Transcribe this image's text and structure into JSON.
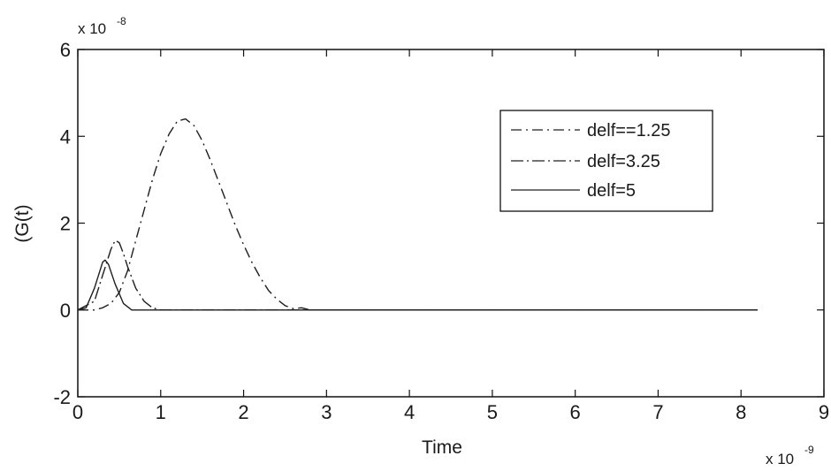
{
  "chart_data": {
    "type": "line",
    "xlabel": "Time",
    "ylabel": "(G(t)",
    "x_multiplier": {
      "base": "x 10",
      "exponent": "-9"
    },
    "y_multiplier": {
      "base": "x 10",
      "exponent": "-8"
    },
    "xlim": [
      0,
      9
    ],
    "ylim": [
      -2,
      6
    ],
    "xticks": [
      0,
      1,
      2,
      3,
      4,
      5,
      6,
      7,
      8,
      9
    ],
    "yticks": [
      -2,
      0,
      2,
      4,
      6
    ],
    "legend_position": "top-right",
    "grid": false,
    "series": [
      {
        "name": "delf==1.25",
        "style": "dash-dot",
        "x": [
          0,
          0.2,
          0.3,
          0.4,
          0.5,
          0.6,
          0.7,
          0.8,
          0.9,
          1.0,
          1.1,
          1.2,
          1.3,
          1.4,
          1.5,
          1.6,
          1.7,
          1.8,
          1.9,
          2.0,
          2.1,
          2.2,
          2.3,
          2.4,
          2.5,
          2.6,
          2.7,
          2.8,
          3.0,
          8.2
        ],
        "y": [
          0,
          0,
          0.05,
          0.15,
          0.4,
          0.9,
          1.6,
          2.3,
          3.0,
          3.6,
          4.05,
          4.35,
          4.4,
          4.25,
          3.9,
          3.45,
          2.95,
          2.45,
          1.95,
          1.5,
          1.1,
          0.75,
          0.45,
          0.25,
          0.1,
          0.03,
          0.05,
          0,
          0,
          0
        ]
      },
      {
        "name": "delf=3.25",
        "style": "dash-dot",
        "x": [
          0,
          0.2,
          0.3,
          0.4,
          0.45,
          0.5,
          0.55,
          0.6,
          0.7,
          0.8,
          0.9,
          1.0,
          8.2
        ],
        "y": [
          0,
          0.2,
          0.8,
          1.4,
          1.6,
          1.55,
          1.3,
          1.0,
          0.5,
          0.2,
          0.05,
          0,
          0
        ]
      },
      {
        "name": "delf=5",
        "style": "solid",
        "x": [
          0,
          0.1,
          0.2,
          0.3,
          0.33,
          0.37,
          0.45,
          0.55,
          0.65,
          0.8,
          8.2
        ],
        "y": [
          0,
          0.05,
          0.5,
          1.1,
          1.15,
          1.05,
          0.6,
          0.15,
          0,
          0,
          0
        ]
      }
    ]
  }
}
